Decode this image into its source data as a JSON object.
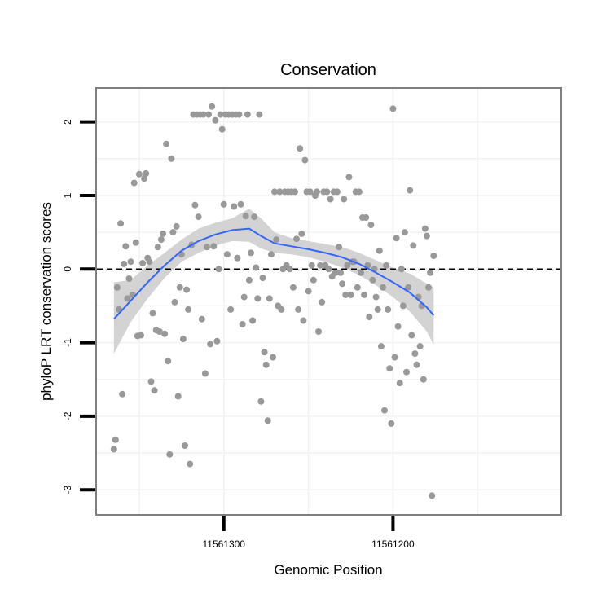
{
  "chart_data": {
    "type": "scatter",
    "title": "Conservation",
    "xlabel": "Genomic Position",
    "ylabel": "phyloP LRT conservation scores",
    "x_reversed": true,
    "xlim": [
      11561375,
      11561101
    ],
    "ylim": [
      -3.33,
      2.45
    ],
    "x_ticks": [
      11561300,
      11561200
    ],
    "x_tick_labels": [
      "11561300",
      "11561200"
    ],
    "y_ticks": [
      -3,
      -2,
      -1,
      0,
      1,
      2
    ],
    "y_tick_labels": [
      "-3",
      "-2",
      "-1",
      "0",
      "1",
      "2"
    ],
    "grid": true,
    "reference_line": {
      "y": 0,
      "style": "dashed",
      "color": "#000000"
    },
    "colors": {
      "points": "#999999",
      "smooth_line": "#3366ff",
      "confidence_band": "#d3d3d3",
      "grid": "#f2f2f2",
      "panel_border": "#7f7f7f"
    },
    "points": [
      {
        "x": 11561365,
        "y": -2.45
      },
      {
        "x": 11561364,
        "y": -2.32
      },
      {
        "x": 11561363,
        "y": -0.25
      },
      {
        "x": 11561362,
        "y": -0.55
      },
      {
        "x": 11561361,
        "y": 0.62
      },
      {
        "x": 11561360,
        "y": -1.7
      },
      {
        "x": 11561359,
        "y": 0.07
      },
      {
        "x": 11561358,
        "y": 0.31
      },
      {
        "x": 11561357,
        "y": -0.4
      },
      {
        "x": 11561356,
        "y": -0.13
      },
      {
        "x": 11561355,
        "y": 0.1
      },
      {
        "x": 11561354,
        "y": -0.35
      },
      {
        "x": 11561353,
        "y": 1.17
      },
      {
        "x": 11561352,
        "y": 0.36
      },
      {
        "x": 11561351,
        "y": -0.91
      },
      {
        "x": 11561350,
        "y": 1.29
      },
      {
        "x": 11561349,
        "y": -0.9
      },
      {
        "x": 11561348,
        "y": 0.08
      },
      {
        "x": 11561347,
        "y": 1.23
      },
      {
        "x": 11561346,
        "y": 1.3
      },
      {
        "x": 11561345,
        "y": 0.15
      },
      {
        "x": 11561344,
        "y": 0.1
      },
      {
        "x": 11561343,
        "y": -1.53
      },
      {
        "x": 11561342,
        "y": -0.6
      },
      {
        "x": 11561341,
        "y": -1.65
      },
      {
        "x": 11561340,
        "y": -0.83
      },
      {
        "x": 11561339,
        "y": 0.3
      },
      {
        "x": 11561338,
        "y": -0.85
      },
      {
        "x": 11561337,
        "y": 0.4
      },
      {
        "x": 11561336,
        "y": 0.48
      },
      {
        "x": 11561335,
        "y": -0.88
      },
      {
        "x": 11561334,
        "y": 1.7
      },
      {
        "x": 11561333,
        "y": -1.25
      },
      {
        "x": 11561332,
        "y": -2.52
      },
      {
        "x": 11561331,
        "y": 1.5
      },
      {
        "x": 11561330,
        "y": 0.5
      },
      {
        "x": 11561329,
        "y": -0.45
      },
      {
        "x": 11561328,
        "y": 0.58
      },
      {
        "x": 11561327,
        "y": -1.73
      },
      {
        "x": 11561326,
        "y": -0.25
      },
      {
        "x": 11561325,
        "y": 0.2
      },
      {
        "x": 11561324,
        "y": -0.95
      },
      {
        "x": 11561323,
        "y": -2.4
      },
      {
        "x": 11561322,
        "y": -0.28
      },
      {
        "x": 11561321,
        "y": -0.55
      },
      {
        "x": 11561320,
        "y": -2.65
      },
      {
        "x": 11561319,
        "y": 0.33
      },
      {
        "x": 11561318,
        "y": 2.1
      },
      {
        "x": 11561317,
        "y": 0.87
      },
      {
        "x": 11561316,
        "y": 2.1
      },
      {
        "x": 11561315,
        "y": 0.71
      },
      {
        "x": 11561314,
        "y": 2.1
      },
      {
        "x": 11561313,
        "y": -0.68
      },
      {
        "x": 11561312,
        "y": 2.1
      },
      {
        "x": 11561311,
        "y": -1.42
      },
      {
        "x": 11561310,
        "y": 0.3
      },
      {
        "x": 11561309,
        "y": 2.1
      },
      {
        "x": 11561308,
        "y": -1.02
      },
      {
        "x": 11561307,
        "y": 2.21
      },
      {
        "x": 11561306,
        "y": 0.31
      },
      {
        "x": 11561305,
        "y": 2.02
      },
      {
        "x": 11561304,
        "y": -0.98
      },
      {
        "x": 11561303,
        "y": 0.0
      },
      {
        "x": 11561302,
        "y": 2.1
      },
      {
        "x": 11561301,
        "y": 1.9
      },
      {
        "x": 11561300,
        "y": 0.88
      },
      {
        "x": 11561299,
        "y": 2.1
      },
      {
        "x": 11561298,
        "y": 0.2
      },
      {
        "x": 11561297,
        "y": 2.1
      },
      {
        "x": 11561296,
        "y": -0.55
      },
      {
        "x": 11561295,
        "y": 2.1
      },
      {
        "x": 11561294,
        "y": 0.85
      },
      {
        "x": 11561293,
        "y": 2.1
      },
      {
        "x": 11561292,
        "y": 0.15
      },
      {
        "x": 11561291,
        "y": 2.1
      },
      {
        "x": 11561290,
        "y": 0.88
      },
      {
        "x": 11561289,
        "y": -0.75
      },
      {
        "x": 11561288,
        "y": -0.38
      },
      {
        "x": 11561287,
        "y": 0.72
      },
      {
        "x": 11561286,
        "y": 2.1
      },
      {
        "x": 11561285,
        "y": -0.15
      },
      {
        "x": 11561284,
        "y": 0.22
      },
      {
        "x": 11561283,
        "y": -0.7
      },
      {
        "x": 11561282,
        "y": 0.71
      },
      {
        "x": 11561281,
        "y": 0.02
      },
      {
        "x": 11561280,
        "y": -0.4
      },
      {
        "x": 11561279,
        "y": 2.1
      },
      {
        "x": 11561278,
        "y": -1.8
      },
      {
        "x": 11561277,
        "y": -0.12
      },
      {
        "x": 11561276,
        "y": -1.13
      },
      {
        "x": 11561275,
        "y": -1.3
      },
      {
        "x": 11561274,
        "y": -2.06
      },
      {
        "x": 11561273,
        "y": -0.4
      },
      {
        "x": 11561272,
        "y": 0.2
      },
      {
        "x": 11561271,
        "y": -1.2
      },
      {
        "x": 11561270,
        "y": 1.05
      },
      {
        "x": 11561269,
        "y": 0.4
      },
      {
        "x": 11561268,
        "y": -0.5
      },
      {
        "x": 11561267,
        "y": 1.05
      },
      {
        "x": 11561266,
        "y": -0.55
      },
      {
        "x": 11561265,
        "y": 0.0
      },
      {
        "x": 11561264,
        "y": 1.05
      },
      {
        "x": 11561263,
        "y": 0.05
      },
      {
        "x": 11561262,
        "y": 1.05
      },
      {
        "x": 11561261,
        "y": 0.0
      },
      {
        "x": 11561260,
        "y": 1.05
      },
      {
        "x": 11561259,
        "y": -0.25
      },
      {
        "x": 11561258,
        "y": 1.05
      },
      {
        "x": 11561257,
        "y": 0.41
      },
      {
        "x": 11561256,
        "y": -0.55
      },
      {
        "x": 11561255,
        "y": 1.64
      },
      {
        "x": 11561254,
        "y": 0.48
      },
      {
        "x": 11561253,
        "y": -0.7
      },
      {
        "x": 11561252,
        "y": 1.48
      },
      {
        "x": 11561251,
        "y": 1.05
      },
      {
        "x": 11561250,
        "y": -0.3
      },
      {
        "x": 11561249,
        "y": 1.05
      },
      {
        "x": 11561248,
        "y": 0.05
      },
      {
        "x": 11561247,
        "y": -0.15
      },
      {
        "x": 11561246,
        "y": 1.0
      },
      {
        "x": 11561245,
        "y": 1.05
      },
      {
        "x": 11561244,
        "y": -0.85
      },
      {
        "x": 11561243,
        "y": 0.05
      },
      {
        "x": 11561242,
        "y": -0.45
      },
      {
        "x": 11561241,
        "y": 1.05
      },
      {
        "x": 11561240,
        "y": 0.05
      },
      {
        "x": 11561239,
        "y": 1.05
      },
      {
        "x": 11561238,
        "y": 0.0
      },
      {
        "x": 11561237,
        "y": 0.95
      },
      {
        "x": 11561236,
        "y": -0.1
      },
      {
        "x": 11561235,
        "y": 1.05
      },
      {
        "x": 11561234,
        "y": -0.05
      },
      {
        "x": 11561233,
        "y": 1.05
      },
      {
        "x": 11561232,
        "y": 0.3
      },
      {
        "x": 11561231,
        "y": -0.05
      },
      {
        "x": 11561230,
        "y": -0.2
      },
      {
        "x": 11561229,
        "y": 0.95
      },
      {
        "x": 11561228,
        "y": -0.35
      },
      {
        "x": 11561227,
        "y": 0.05
      },
      {
        "x": 11561226,
        "y": 1.25
      },
      {
        "x": 11561225,
        "y": -0.35
      },
      {
        "x": 11561224,
        "y": 0.1
      },
      {
        "x": 11561223,
        "y": 0.1
      },
      {
        "x": 11561222,
        "y": 1.05
      },
      {
        "x": 11561221,
        "y": -0.25
      },
      {
        "x": 11561220,
        "y": 1.05
      },
      {
        "x": 11561219,
        "y": -0.05
      },
      {
        "x": 11561218,
        "y": 0.7
      },
      {
        "x": 11561217,
        "y": -0.35
      },
      {
        "x": 11561216,
        "y": 0.7
      },
      {
        "x": 11561215,
        "y": 0.05
      },
      {
        "x": 11561214,
        "y": -0.65
      },
      {
        "x": 11561213,
        "y": 0.6
      },
      {
        "x": 11561212,
        "y": -0.15
      },
      {
        "x": 11561211,
        "y": 0.0
      },
      {
        "x": 11561210,
        "y": -0.38
      },
      {
        "x": 11561209,
        "y": -0.55
      },
      {
        "x": 11561208,
        "y": 0.25
      },
      {
        "x": 11561207,
        "y": -1.05
      },
      {
        "x": 11561206,
        "y": -0.25
      },
      {
        "x": 11561205,
        "y": -1.92
      },
      {
        "x": 11561204,
        "y": 0.05
      },
      {
        "x": 11561203,
        "y": -0.55
      },
      {
        "x": 11561202,
        "y": -1.35
      },
      {
        "x": 11561201,
        "y": -2.1
      },
      {
        "x": 11561200,
        "y": 2.18
      },
      {
        "x": 11561199,
        "y": -1.2
      },
      {
        "x": 11561198,
        "y": 0.42
      },
      {
        "x": 11561197,
        "y": -0.78
      },
      {
        "x": 11561196,
        "y": -1.55
      },
      {
        "x": 11561195,
        "y": 0.0
      },
      {
        "x": 11561194,
        "y": -0.5
      },
      {
        "x": 11561193,
        "y": 0.5
      },
      {
        "x": 11561192,
        "y": -1.4
      },
      {
        "x": 11561191,
        "y": -0.25
      },
      {
        "x": 11561190,
        "y": 1.07
      },
      {
        "x": 11561189,
        "y": -0.9
      },
      {
        "x": 11561188,
        "y": 0.32
      },
      {
        "x": 11561187,
        "y": -1.15
      },
      {
        "x": 11561186,
        "y": -1.3
      },
      {
        "x": 11561185,
        "y": -0.38
      },
      {
        "x": 11561184,
        "y": -1.05
      },
      {
        "x": 11561183,
        "y": -0.5
      },
      {
        "x": 11561182,
        "y": -1.5
      },
      {
        "x": 11561181,
        "y": 0.55
      },
      {
        "x": 11561180,
        "y": 0.45
      },
      {
        "x": 11561179,
        "y": -0.25
      },
      {
        "x": 11561178,
        "y": -0.05
      },
      {
        "x": 11561177,
        "y": -3.08
      },
      {
        "x": 11561176,
        "y": 0.18
      }
    ],
    "smooth": {
      "method": "loess",
      "x": [
        11561365,
        11561355,
        11561345,
        11561335,
        11561325,
        11561315,
        11561305,
        11561295,
        11561285,
        11561278,
        11561270,
        11561260,
        11561250,
        11561240,
        11561230,
        11561220,
        11561210,
        11561200,
        11561190,
        11561180,
        11561176
      ],
      "y": [
        -0.68,
        -0.43,
        -0.18,
        0.05,
        0.25,
        0.38,
        0.47,
        0.53,
        0.55,
        0.45,
        0.35,
        0.31,
        0.27,
        0.22,
        0.16,
        0.07,
        -0.05,
        -0.18,
        -0.32,
        -0.52,
        -0.63
      ],
      "lower": [
        -1.15,
        -0.72,
        -0.4,
        -0.12,
        0.1,
        0.22,
        0.32,
        0.38,
        0.37,
        0.28,
        0.22,
        0.2,
        0.16,
        0.1,
        0.02,
        -0.08,
        -0.22,
        -0.38,
        -0.58,
        -0.85,
        -1.03
      ],
      "upper": [
        -0.18,
        -0.15,
        0.05,
        0.22,
        0.4,
        0.55,
        0.63,
        0.69,
        0.82,
        0.69,
        0.5,
        0.42,
        0.38,
        0.34,
        0.3,
        0.22,
        0.12,
        0.02,
        -0.06,
        -0.2,
        -0.25
      ]
    }
  }
}
